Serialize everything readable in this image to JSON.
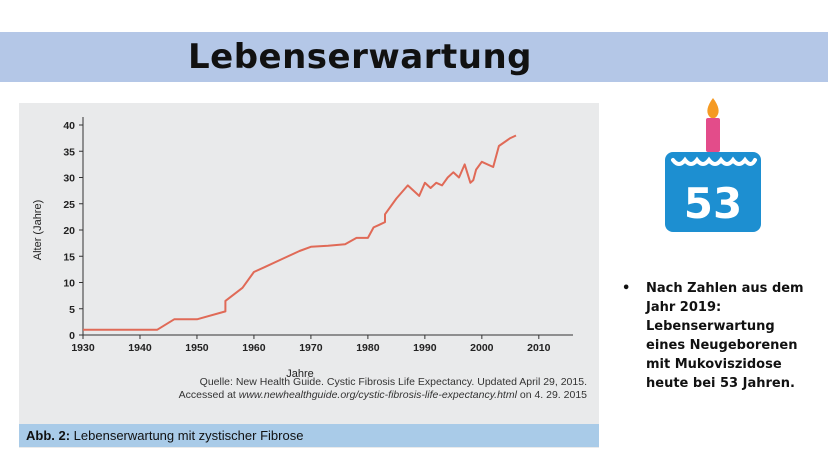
{
  "slide": {
    "title": "Lebenserwartung"
  },
  "figure": {
    "source_line1": "Quelle: New Health Guide. Cystic Fibrosis Life Expectancy. Updated April 29, 2015.",
    "source_line2_prefix": "Accessed at ",
    "source_line2_url": "www.newhealthguide.org/cystic-fibrosis-life-expectancy.html",
    "source_line2_suffix": " on 4. 29. 2015",
    "caption_label": "Abb. 2:",
    "caption_text": " Lebenserwartung mit zystischer Fibrose"
  },
  "cake": {
    "number": "53",
    "colors": {
      "cake": "#1d8fd1",
      "candle": "#e34c8a",
      "flame": "#f59a23"
    }
  },
  "bullet": {
    "marker": "•",
    "text": "Nach Zahlen aus dem Jahr 2019: Lebenserwartung eines Neugeborenen mit Mukoviszidose heute bei 53 Jahren."
  },
  "chart_data": {
    "type": "line",
    "xlabel": "Jahre",
    "ylabel": "Alter (Jahre)",
    "xlim": [
      1930,
      2016
    ],
    "ylim": [
      0,
      40
    ],
    "xticks": [
      1930,
      1940,
      1950,
      1960,
      1970,
      1980,
      1990,
      2000,
      2010
    ],
    "yticks": [
      0,
      5,
      10,
      15,
      20,
      25,
      30,
      35,
      40
    ],
    "color": "#e06a57",
    "series": [
      {
        "x": [
          1930,
          1943,
          1946,
          1950,
          1955,
          1955,
          1958,
          1960,
          1962,
          1965,
          1968,
          1970,
          1973,
          1976,
          1978,
          1980,
          1981,
          1982,
          1983,
          1983,
          1985,
          1987,
          1988,
          1989,
          1990,
          1991,
          1992,
          1993,
          1994,
          1995,
          1996,
          1997,
          1998,
          1998.5,
          1999,
          2000,
          2002,
          2003,
          2005,
          2006
        ],
        "y": [
          1,
          1,
          3,
          3,
          4.5,
          6.5,
          9,
          12,
          13,
          14.5,
          16,
          16.8,
          17,
          17.3,
          18.5,
          18.5,
          20.5,
          21,
          21.5,
          23,
          26,
          28.5,
          27.5,
          26.5,
          29,
          28,
          29,
          28.5,
          30,
          31,
          30,
          32.5,
          29,
          29.5,
          31.5,
          33,
          32,
          36,
          37.5,
          38
        ]
      }
    ]
  }
}
